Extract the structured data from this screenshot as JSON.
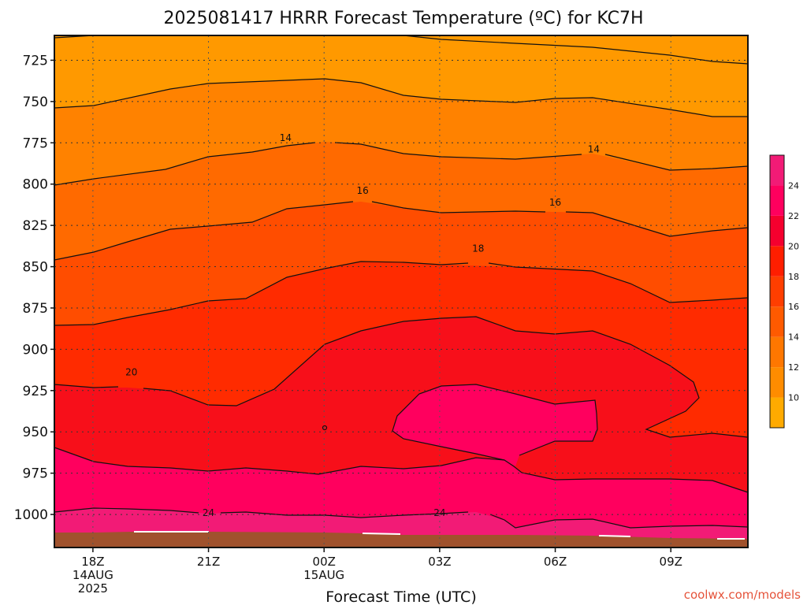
{
  "chart_data": {
    "type": "contour",
    "title": "2025081417 HRRR Forecast Temperature (ºC) for KC7H",
    "xlabel": "Forecast Time (UTC)",
    "ylabel": "",
    "x_ticks": [
      {
        "label": "18Z",
        "sub": [
          "14AUG",
          "2025"
        ]
      },
      {
        "label": "21Z",
        "sub": []
      },
      {
        "label": "00Z",
        "sub": [
          "15AUG"
        ]
      },
      {
        "label": "03Z",
        "sub": []
      },
      {
        "label": "06Z",
        "sub": []
      },
      {
        "label": "09Z",
        "sub": []
      }
    ],
    "x_range_hours": [
      17,
      35
    ],
    "y_ticks": [
      725,
      750,
      775,
      800,
      825,
      850,
      875,
      900,
      925,
      950,
      975,
      1000
    ],
    "y_range_hpa": [
      710,
      1020
    ],
    "colorbar": {
      "levels": [
        8,
        10,
        12,
        14,
        16,
        18,
        20,
        22,
        24,
        26
      ],
      "colors": [
        "#ffaa00",
        "#ff8c00",
        "#ff7700",
        "#ff5a00",
        "#ff3e00",
        "#ff1e00",
        "#f5002e",
        "#ff005e",
        "#f21b76"
      ],
      "tick_labels": [
        "10",
        "12",
        "14",
        "16",
        "18",
        "20",
        "22",
        "24"
      ]
    },
    "contour_labels": [
      {
        "value": "14",
        "hour": 23.0,
        "hpa": 772
      },
      {
        "value": "14",
        "hour": 31.0,
        "hpa": 779
      },
      {
        "value": "16",
        "hour": 25.0,
        "hpa": 804
      },
      {
        "value": "16",
        "hour": 30.0,
        "hpa": 811
      },
      {
        "value": "18",
        "hour": 28.0,
        "hpa": 839
      },
      {
        "value": "20",
        "hour": 19.0,
        "hpa": 914
      },
      {
        "value": "24",
        "hour": 21.0,
        "hpa": 999
      },
      {
        "value": "24",
        "hour": 27.0,
        "hpa": 999
      }
    ],
    "grid": true,
    "terrain_color": "#a0522d",
    "credit": "coolwx.com/models"
  }
}
